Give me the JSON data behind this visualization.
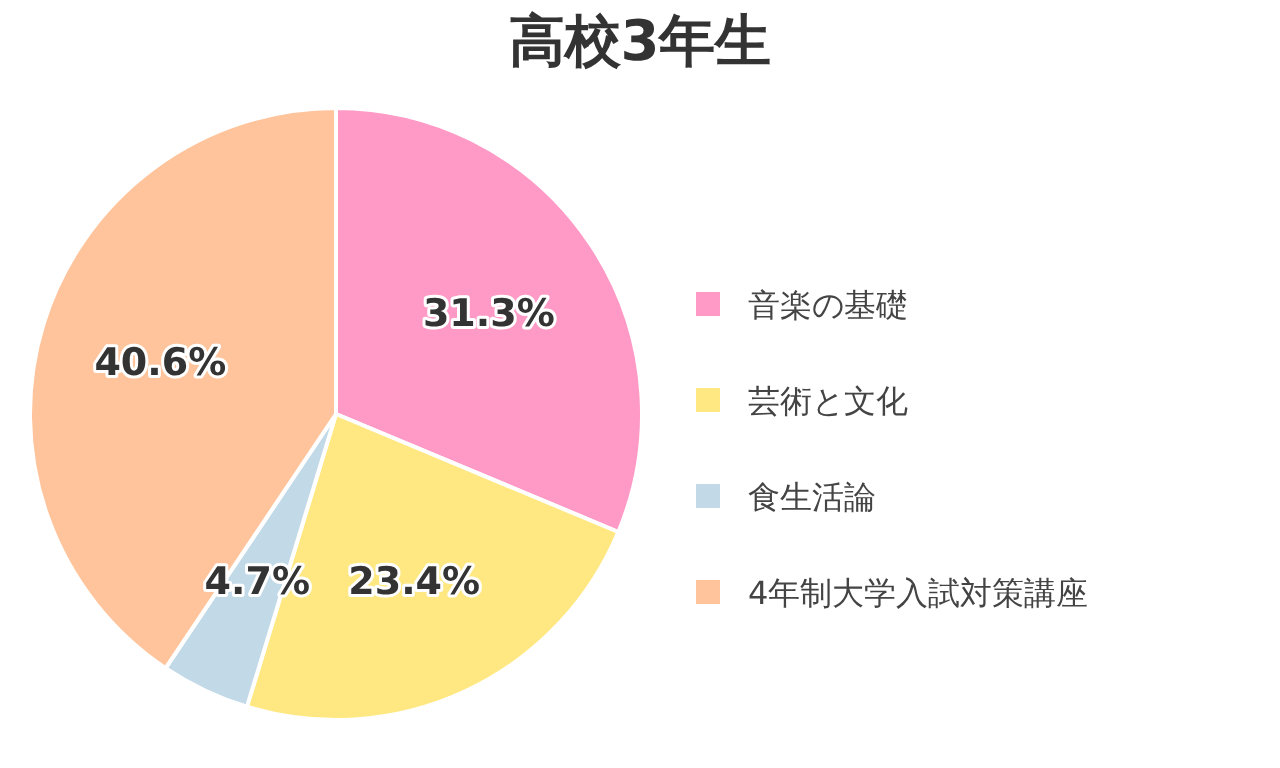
{
  "chart_data": {
    "type": "pie",
    "title": "高校3年生",
    "categories": [
      "音楽の基礎",
      "芸術と文化",
      "食生活論",
      "4年制大学入試対策講座"
    ],
    "values": [
      31.3,
      23.4,
      4.7,
      40.6
    ],
    "colors": [
      "#ff99c6",
      "#ffe882",
      "#c2d9e8",
      "#ffc49b"
    ],
    "value_labels": [
      "31.3%",
      "23.4%",
      "4.7%",
      "40.6%"
    ],
    "legend": "right"
  }
}
